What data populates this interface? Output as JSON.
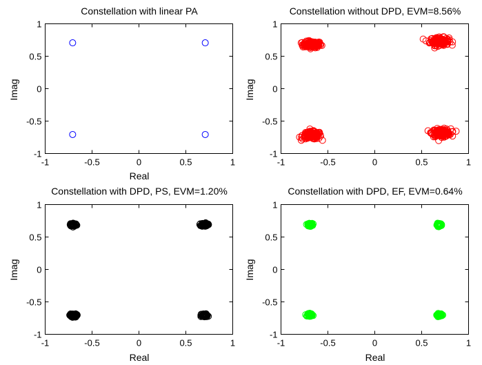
{
  "chart_data": [
    {
      "type": "scatter",
      "title": "Constellation with linear PA",
      "xlabel": "Real",
      "ylabel": "Imag",
      "xlim": [
        -1,
        1
      ],
      "ylim": [
        -1,
        1
      ],
      "xticks": [
        -1,
        -0.5,
        0,
        0.5,
        1
      ],
      "yticks": [
        -1,
        -0.5,
        0,
        0.5,
        1
      ],
      "xtick_labels": [
        "-1",
        "-0.5",
        "0",
        "0.5",
        "1"
      ],
      "ytick_labels": [
        "-1",
        "-0.5",
        "0",
        "0.5",
        "1"
      ],
      "marker": "circle",
      "color": "#0000ff",
      "filled": false,
      "clusters": [
        {
          "x": -0.707,
          "y": 0.707,
          "spread_x": 0.0,
          "spread_y": 0.0
        },
        {
          "x": 0.707,
          "y": 0.707,
          "spread_x": 0.0,
          "spread_y": 0.0
        },
        {
          "x": -0.707,
          "y": -0.707,
          "spread_x": 0.0,
          "spread_y": 0.0
        },
        {
          "x": 0.707,
          "y": -0.707,
          "spread_x": 0.0,
          "spread_y": 0.0
        }
      ],
      "points_per_cluster": 1,
      "grid": false
    },
    {
      "type": "scatter",
      "title": "Constellation without DPD, EVM=8.56%",
      "xlabel": "",
      "ylabel": "Imag",
      "xlim": [
        -1,
        1
      ],
      "ylim": [
        -1,
        1
      ],
      "xticks": [
        -1,
        -0.5,
        0,
        0.5,
        1
      ],
      "yticks": [
        -1,
        -0.5,
        0,
        0.5,
        1
      ],
      "xtick_labels": [
        "-1",
        "-0.5",
        "0",
        "0.5",
        "1"
      ],
      "ytick_labels": [
        "-1",
        "-0.5",
        "0",
        "0.5",
        "1"
      ],
      "marker": "circle",
      "color": "#ff0000",
      "filled": false,
      "clusters": [
        {
          "x": -0.67,
          "y": 0.68,
          "spread_x": 0.1,
          "spread_y": 0.05
        },
        {
          "x": 0.69,
          "y": 0.73,
          "spread_x": 0.1,
          "spread_y": 0.06
        },
        {
          "x": -0.67,
          "y": -0.72,
          "spread_x": 0.1,
          "spread_y": 0.06
        },
        {
          "x": 0.71,
          "y": -0.68,
          "spread_x": 0.1,
          "spread_y": 0.06
        }
      ],
      "points_per_cluster": 150,
      "grid": false
    },
    {
      "type": "scatter",
      "title": "Constellation with DPD, PS, EVM=1.20%",
      "xlabel": "Real",
      "ylabel": "Imag",
      "xlim": [
        -1,
        1
      ],
      "ylim": [
        -1,
        1
      ],
      "xticks": [
        -1,
        -0.5,
        0,
        0.5,
        1
      ],
      "yticks": [
        -1,
        -0.5,
        0,
        0.5,
        1
      ],
      "xtick_labels": [
        "-1",
        "-0.5",
        "0",
        "0.5",
        "1"
      ],
      "ytick_labels": [
        "-1",
        "-0.5",
        "0",
        "0.5",
        "1"
      ],
      "marker": "circle",
      "color": "#000000",
      "filled": false,
      "clusters": [
        {
          "x": -0.7,
          "y": 0.69,
          "spread_x": 0.035,
          "spread_y": 0.025
        },
        {
          "x": 0.7,
          "y": 0.69,
          "spread_x": 0.035,
          "spread_y": 0.025
        },
        {
          "x": -0.7,
          "y": -0.71,
          "spread_x": 0.035,
          "spread_y": 0.025
        },
        {
          "x": 0.7,
          "y": -0.71,
          "spread_x": 0.035,
          "spread_y": 0.025
        }
      ],
      "points_per_cluster": 80,
      "grid": false
    },
    {
      "type": "scatter",
      "title": "Constellation with DPD, EF, EVM=0.64%",
      "xlabel": "Real",
      "ylabel": "Imag",
      "xlim": [
        -1,
        1
      ],
      "ylim": [
        -1,
        1
      ],
      "xticks": [
        -1,
        -0.5,
        0,
        0.5,
        1
      ],
      "yticks": [
        -1,
        -0.5,
        0,
        0.5,
        1
      ],
      "xtick_labels": [
        "-1",
        "-0.5",
        "0",
        "0.5",
        "1"
      ],
      "ytick_labels": [
        "-1",
        "-0.5",
        "0",
        "0.5",
        "1"
      ],
      "marker": "circle",
      "color": "#00ff00",
      "filled": false,
      "clusters": [
        {
          "x": -0.69,
          "y": 0.69,
          "spread_x": 0.025,
          "spread_y": 0.02
        },
        {
          "x": 0.69,
          "y": 0.69,
          "spread_x": 0.025,
          "spread_y": 0.02
        },
        {
          "x": -0.69,
          "y": -0.7,
          "spread_x": 0.025,
          "spread_y": 0.02
        },
        {
          "x": 0.69,
          "y": -0.7,
          "spread_x": 0.025,
          "spread_y": 0.02
        }
      ],
      "points_per_cluster": 70,
      "grid": false
    }
  ]
}
